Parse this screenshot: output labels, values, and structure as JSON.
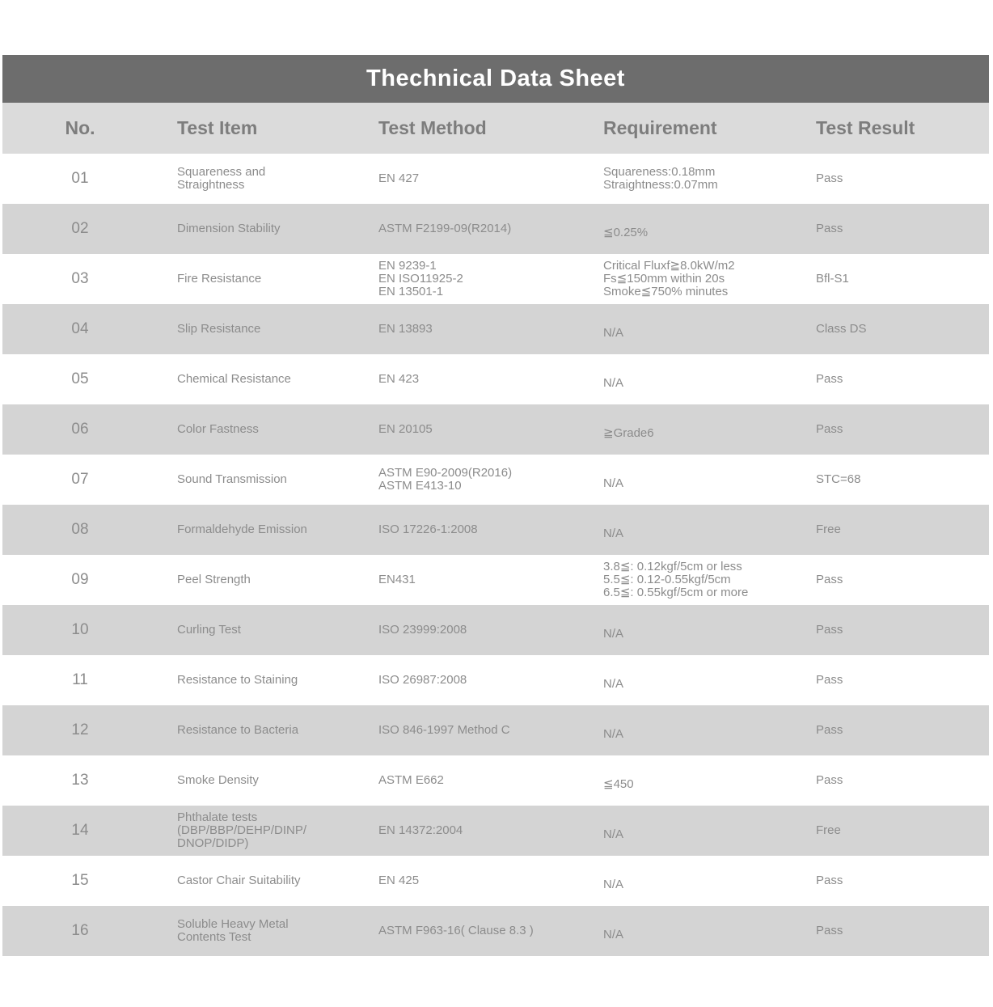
{
  "title": "Thechnical Data Sheet",
  "colors": {
    "title_bar_bg": "#6d6d6d",
    "title_text": "#ffffff",
    "header_bg": "#dbdbdb",
    "row_bg": "#ffffff",
    "row_alt_bg": "#d4d4d4",
    "body_text": "#8c8c8c",
    "header_text": "#7d7d7d"
  },
  "table": {
    "columns": [
      "No.",
      "Test Item",
      "Test Method",
      "Requirement",
      "Test Result"
    ],
    "rows": [
      {
        "no": "01",
        "item": [
          "Squareness and",
          "Straightness"
        ],
        "method": [
          "EN 427"
        ],
        "requirement": [
          "Squareness:0.18mm",
          "Straightness:0.07mm"
        ],
        "result": "Pass"
      },
      {
        "no": "02",
        "item": [
          "Dimension Stability"
        ],
        "method": [
          "ASTM F2199-09(R2014)"
        ],
        "requirement": [
          "≦0.25%"
        ],
        "result": "Pass"
      },
      {
        "no": "03",
        "item": [
          "Fire Resistance"
        ],
        "method": [
          "EN 9239-1",
          "EN ISO11925-2",
          "EN 13501-1"
        ],
        "requirement": [
          "Critical Fluxf≧8.0kW/m2",
          "Fs≦150mm within 20s",
          "Smoke≦750% minutes"
        ],
        "result": "Bfl-S1"
      },
      {
        "no": "04",
        "item": [
          "Slip Resistance"
        ],
        "method": [
          "EN 13893"
        ],
        "requirement": [
          "N/A"
        ],
        "result": "Class DS"
      },
      {
        "no": "05",
        "item": [
          "Chemical Resistance"
        ],
        "method": [
          "EN 423"
        ],
        "requirement": [
          "N/A"
        ],
        "result": "Pass"
      },
      {
        "no": "06",
        "item": [
          "Color Fastness"
        ],
        "method": [
          "EN 20105"
        ],
        "requirement": [
          "≧Grade6"
        ],
        "result": "Pass"
      },
      {
        "no": "07",
        "item": [
          "Sound Transmission"
        ],
        "method": [
          "ASTM E90-2009(R2016)",
          "ASTM E413-10"
        ],
        "requirement": [
          "N/A"
        ],
        "result": "STC=68"
      },
      {
        "no": "08",
        "item": [
          "Formaldehyde Emission"
        ],
        "method": [
          "ISO 17226-1:2008"
        ],
        "requirement": [
          "N/A"
        ],
        "result": "Free"
      },
      {
        "no": "09",
        "item": [
          "Peel Strength"
        ],
        "method": [
          "EN431"
        ],
        "requirement": [
          "3.8≦: 0.12kgf/5cm or less",
          "5.5≦: 0.12-0.55kgf/5cm",
          "6.5≦: 0.55kgf/5cm or more"
        ],
        "result": "Pass"
      },
      {
        "no": "10",
        "item": [
          "Curling Test"
        ],
        "method": [
          "ISO 23999:2008"
        ],
        "requirement": [
          "N/A"
        ],
        "result": "Pass"
      },
      {
        "no": "11",
        "item": [
          "Resistance to Staining"
        ],
        "method": [
          "ISO 26987:2008"
        ],
        "requirement": [
          "N/A"
        ],
        "result": "Pass"
      },
      {
        "no": "12",
        "item": [
          "Resistance to Bacteria"
        ],
        "method": [
          "ISO 846-1997 Method C"
        ],
        "requirement": [
          "N/A"
        ],
        "result": "Pass"
      },
      {
        "no": "13",
        "item": [
          "Smoke Density"
        ],
        "method": [
          "ASTM E662"
        ],
        "requirement": [
          "≦450"
        ],
        "result": "Pass"
      },
      {
        "no": "14",
        "item": [
          "Phthalate tests",
          "(DBP/BBP/DEHP/DINP/",
          "DNOP/DIDP)"
        ],
        "method": [
          "EN 14372:2004"
        ],
        "requirement": [
          "N/A"
        ],
        "result": "Free"
      },
      {
        "no": "15",
        "item": [
          "Castor Chair Suitability"
        ],
        "method": [
          "EN 425"
        ],
        "requirement": [
          "N/A"
        ],
        "result": "Pass"
      },
      {
        "no": "16",
        "item": [
          "Soluble Heavy Metal",
          "Contents Test"
        ],
        "method": [
          "ASTM F963-16( Clause 8.3 )"
        ],
        "requirement": [
          "N/A"
        ],
        "result": "Pass"
      }
    ]
  }
}
